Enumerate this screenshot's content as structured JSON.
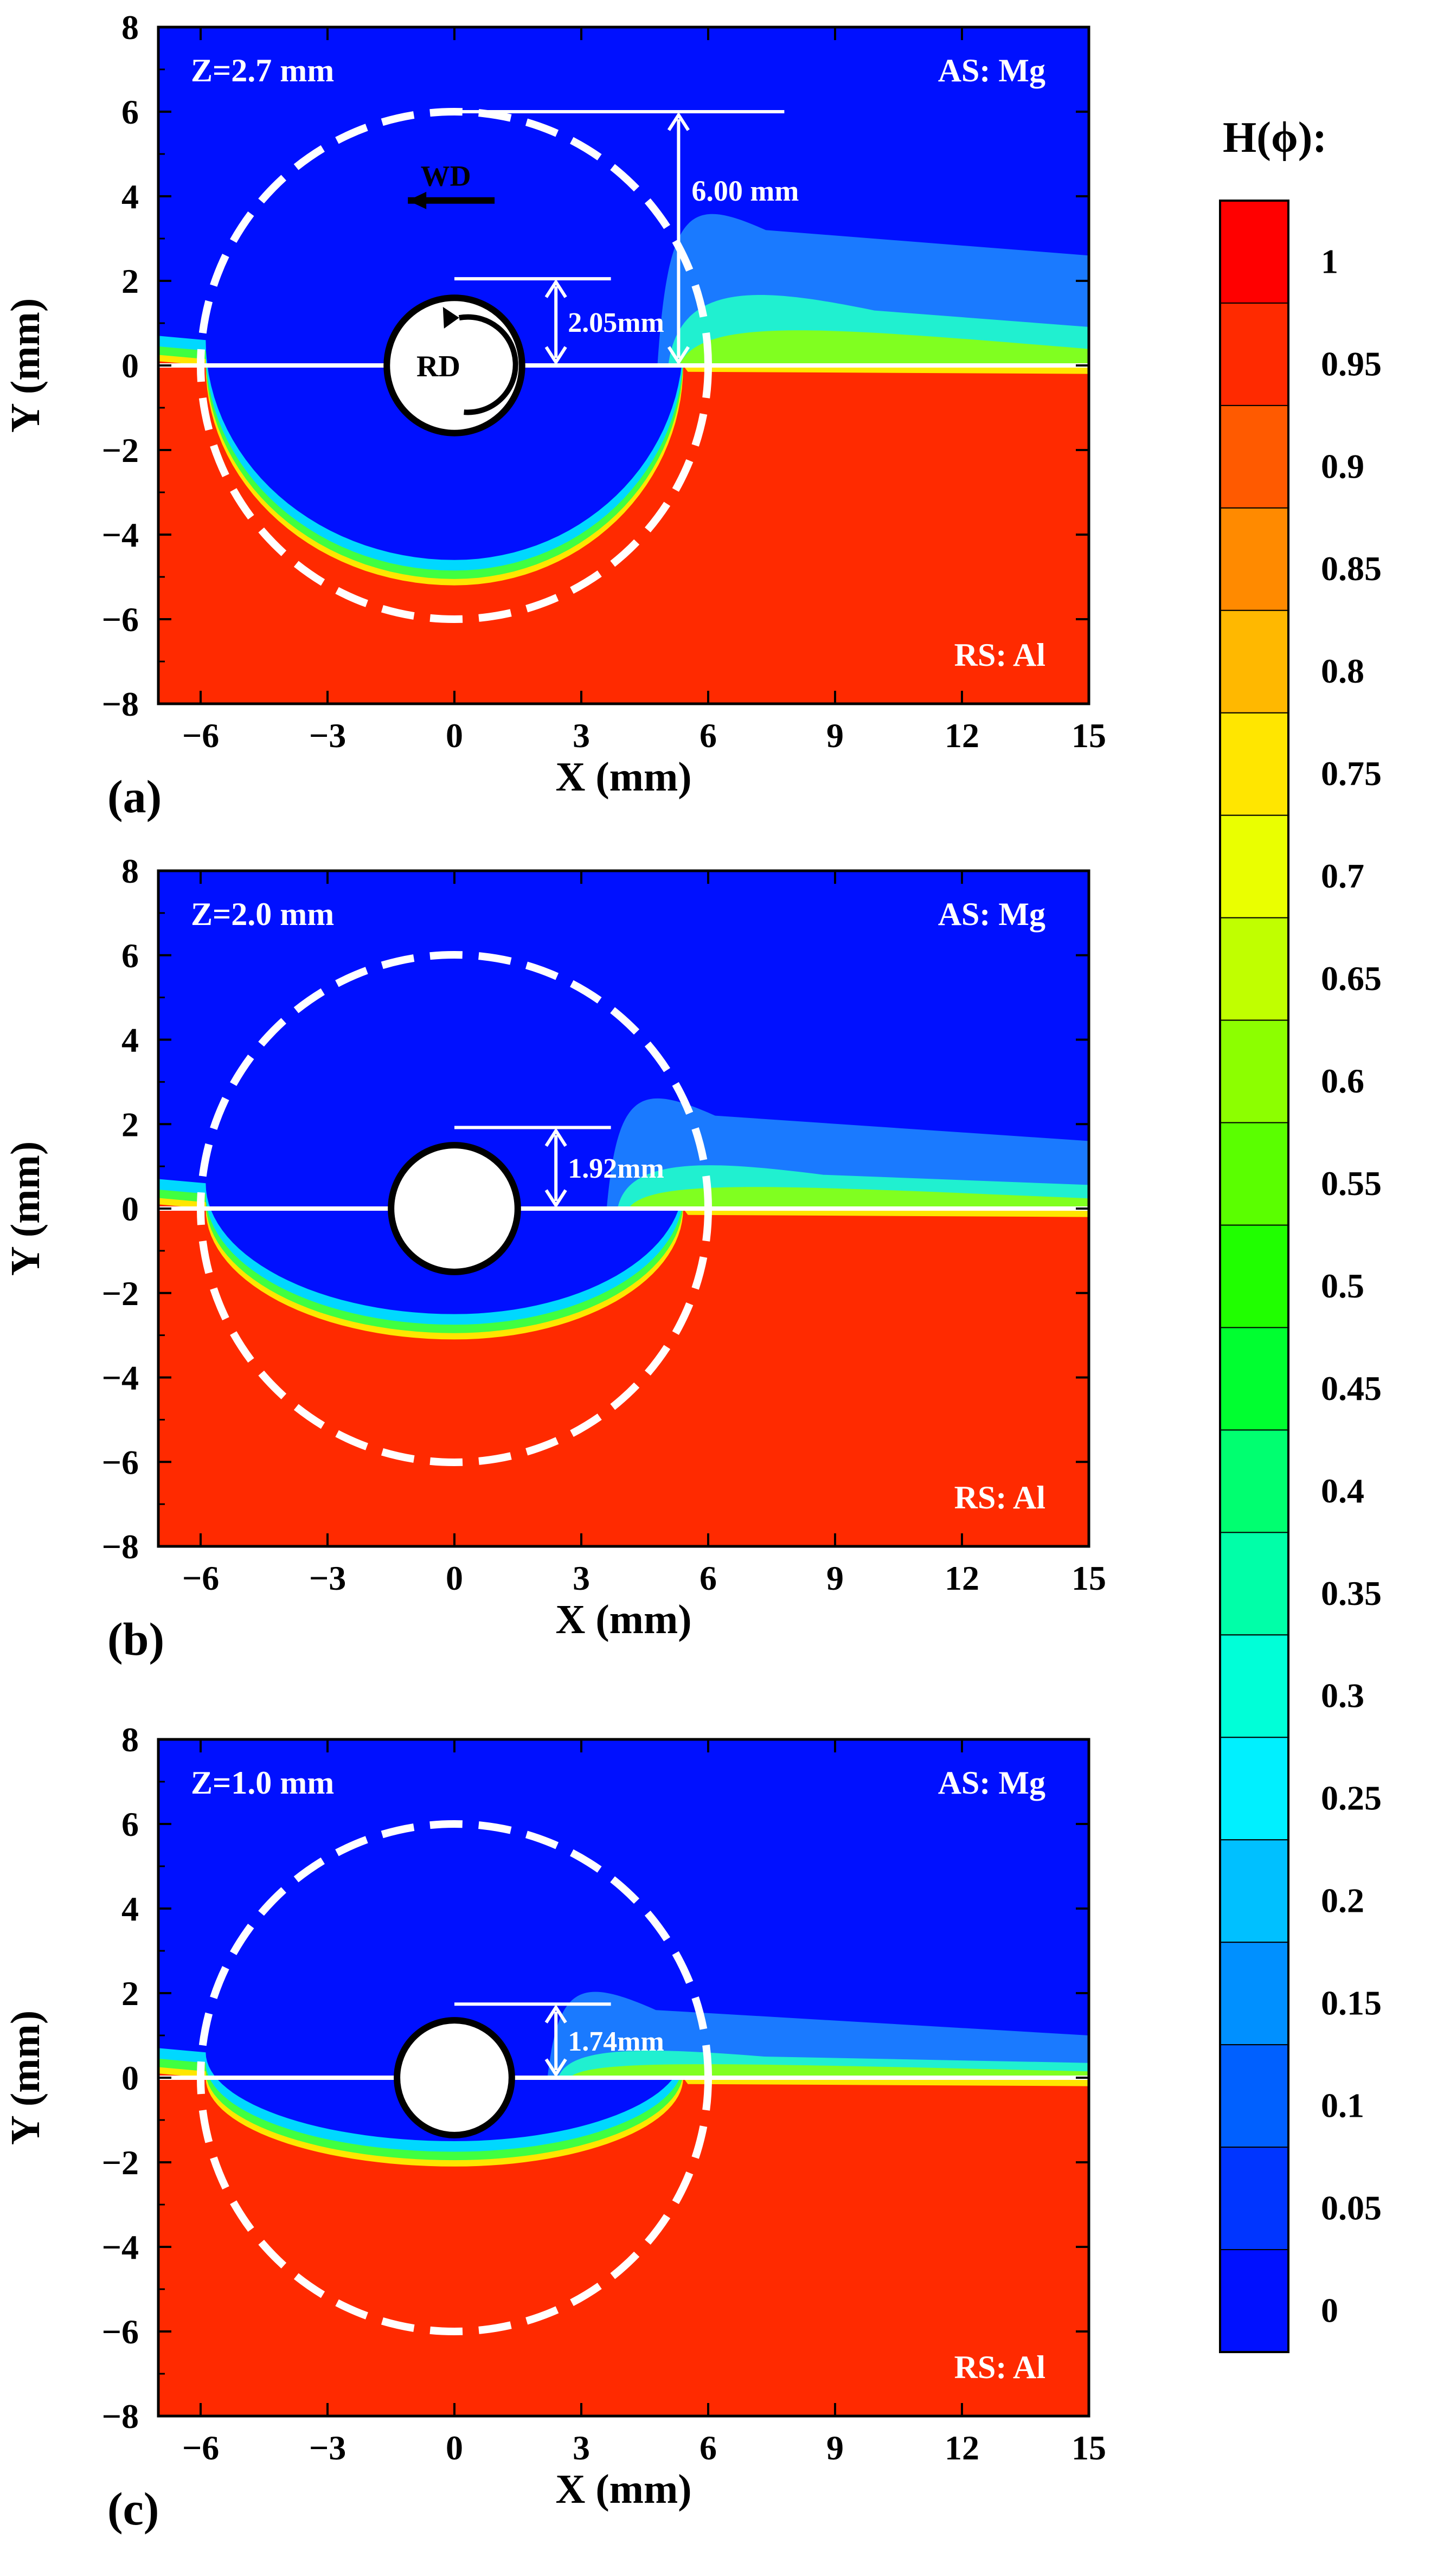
{
  "colors": {
    "blue": "#0010ff",
    "red": "#ff2a00",
    "white": "#ffffff",
    "black": "#000000"
  },
  "chart_data": [
    {
      "type": "contour",
      "panel_label": "(a)",
      "depth_label": "Z=2.7 mm",
      "as_label": "AS: Mg",
      "rs_label": "RS: Al",
      "xlabel": "X (mm)",
      "ylabel": "Y (mm)",
      "xlim": [
        -7,
        15
      ],
      "ylim": [
        -8,
        8
      ],
      "xticks": [
        -6,
        -3,
        0,
        3,
        6,
        9,
        12,
        15
      ],
      "yticks": [
        -8,
        -6,
        -4,
        -2,
        0,
        2,
        4,
        6,
        8
      ],
      "shoulder_radius_mm": 6.0,
      "pin_radius_mm": 2.05,
      "interface_y_mm": 0,
      "bowl_bottom_y_mm": -5.2,
      "pin_dimension_label": "2.05mm",
      "shoulder_dimension_label": "6.00 mm",
      "welding_direction_label": "WD",
      "rotation_direction_label": "RD"
    },
    {
      "type": "contour",
      "panel_label": "(b)",
      "depth_label": "Z=2.0 mm",
      "as_label": "AS: Mg",
      "rs_label": "RS: Al",
      "xlabel": "X (mm)",
      "ylabel": "Y (mm)",
      "xlim": [
        -7,
        15
      ],
      "ylim": [
        -8,
        8
      ],
      "xticks": [
        -6,
        -3,
        0,
        3,
        6,
        9,
        12,
        15
      ],
      "yticks": [
        -8,
        -6,
        -4,
        -2,
        0,
        2,
        4,
        6,
        8
      ],
      "shoulder_radius_mm": 6.0,
      "pin_radius_mm": 1.92,
      "interface_y_mm": 0,
      "bowl_bottom_y_mm": -3.1,
      "pin_dimension_label": "1.92mm"
    },
    {
      "type": "contour",
      "panel_label": "(c)",
      "depth_label": "Z=1.0 mm",
      "as_label": "AS: Mg",
      "rs_label": "RS: Al",
      "xlabel": "X (mm)",
      "ylabel": "Y (mm)",
      "xlim": [
        -7,
        15
      ],
      "ylim": [
        -8,
        8
      ],
      "xticks": [
        -6,
        -3,
        0,
        3,
        6,
        9,
        12,
        15
      ],
      "yticks": [
        -8,
        -6,
        -4,
        -2,
        0,
        2,
        4,
        6,
        8
      ],
      "shoulder_radius_mm": 6.0,
      "pin_radius_mm": 1.74,
      "interface_y_mm": 0,
      "bowl_bottom_y_mm": -2.1,
      "pin_dimension_label": "1.74mm"
    }
  ],
  "colorbar": {
    "title": "H(ϕ):",
    "levels": [
      "1",
      "0.95",
      "0.9",
      "0.85",
      "0.8",
      "0.75",
      "0.7",
      "0.65",
      "0.6",
      "0.55",
      "0.5",
      "0.45",
      "0.4",
      "0.35",
      "0.3",
      "0.25",
      "0.2",
      "0.15",
      "0.1",
      "0.05",
      "0"
    ],
    "band_colors": [
      "#ff0000",
      "#ff2a00",
      "#ff5a00",
      "#ff8a00",
      "#ffb800",
      "#ffe600",
      "#eaff00",
      "#c0ff00",
      "#8cff00",
      "#5aff00",
      "#20ff00",
      "#00ff30",
      "#00ff70",
      "#00ffa8",
      "#00ffd8",
      "#00f0ff",
      "#00c0ff",
      "#0090ff",
      "#0060ff",
      "#0035ff",
      "#0010ff"
    ]
  }
}
